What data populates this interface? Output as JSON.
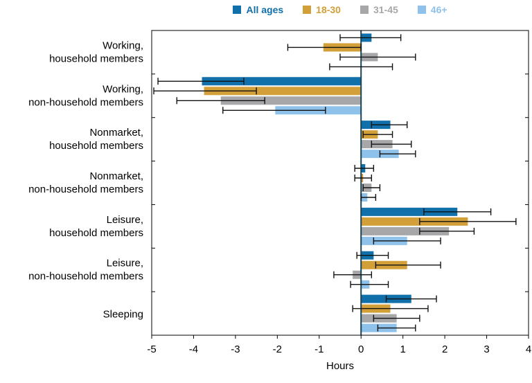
{
  "chart_data": {
    "type": "bar",
    "orientation": "horizontal",
    "title": "",
    "xlabel": "Hours",
    "xlim": [
      -5,
      4
    ],
    "xticks": [
      -5,
      -4,
      -3,
      -2,
      -1,
      0,
      1,
      2,
      3,
      4
    ],
    "grid": false,
    "error_bars": true,
    "legend_position": "top",
    "zero_line_color": "#1b4455",
    "frame_color": "#000000",
    "error_bar_color": "#111111",
    "categories": [
      "Working, household members",
      "Working, non-household members",
      "Nonmarket, household members",
      "Nonmarket, non-household members",
      "Leisure, household members",
      "Leisure, non-household members",
      "Sleeping"
    ],
    "category_lines": [
      [
        "Working,",
        "household members"
      ],
      [
        "Working,",
        "non-household members"
      ],
      [
        "Nonmarket,",
        "household members"
      ],
      [
        "Nonmarket,",
        "non-household members"
      ],
      [
        "Leisure,",
        "household members"
      ],
      [
        "Leisure,",
        "non-household members"
      ],
      [
        "Sleeping"
      ]
    ],
    "series": [
      {
        "name": "All ages",
        "color": "#1170aa",
        "values": [
          0.25,
          -3.8,
          0.7,
          0.1,
          2.3,
          0.3,
          1.2
        ],
        "ci_low": [
          -0.5,
          -4.85,
          0.25,
          -0.15,
          1.5,
          -0.1,
          0.6
        ],
        "ci_high": [
          0.95,
          -2.8,
          1.1,
          0.3,
          3.1,
          0.65,
          1.8
        ]
      },
      {
        "name": "18-30",
        "color": "#d29f39",
        "values": [
          -0.9,
          -3.75,
          0.4,
          0.05,
          2.55,
          1.1,
          0.7
        ],
        "ci_low": [
          -1.75,
          -4.95,
          0.05,
          -0.15,
          1.4,
          0.35,
          -0.2
        ],
        "ci_high": [
          0,
          -2.5,
          0.75,
          0.25,
          3.7,
          1.9,
          1.6
        ]
      },
      {
        "name": "31-45",
        "color": "#a7a7aa",
        "values": [
          0.4,
          -3.35,
          0.75,
          0.25,
          2.1,
          -0.2,
          0.85
        ],
        "ci_low": [
          -0.5,
          -4.4,
          0.25,
          0.05,
          1.4,
          -0.65,
          0.3
        ],
        "ci_high": [
          1.3,
          -2.3,
          1.2,
          0.45,
          2.7,
          0.25,
          1.4
        ]
      },
      {
        "name": "46+",
        "color": "#8fc2ea",
        "values": [
          0,
          -2.05,
          0.9,
          0.15,
          1.1,
          0.2,
          0.85
        ],
        "ci_low": [
          -0.75,
          -3.3,
          0.45,
          0,
          0.3,
          -0.25,
          0.4
        ],
        "ci_high": [
          0.75,
          -0.85,
          1.3,
          0.35,
          1.9,
          0.65,
          1.3
        ]
      }
    ]
  }
}
